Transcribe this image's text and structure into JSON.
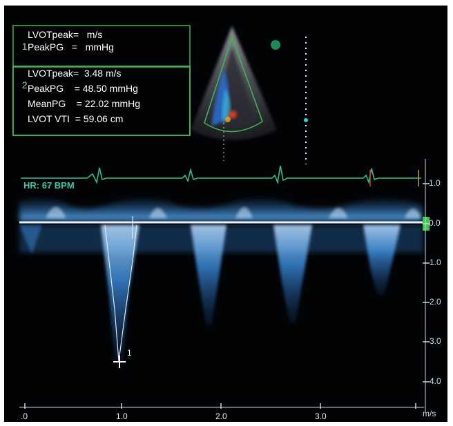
{
  "measurements": {
    "set1": {
      "index": "1",
      "lines": [
        "LVOTpeak=   m/s",
        "PeakPG   =   mmHg"
      ]
    },
    "set2": {
      "index": "2",
      "lines": [
        "LVOTpeak=  3.48 m/s",
        "PeakPG    = 48.50 mmHg",
        "MeanPG    = 22.02 mmHg",
        "LVOT VTI  = 59.06 cm"
      ]
    }
  },
  "ecg": {
    "heart_rate_label": "HR: 67 BPM"
  },
  "velocity_axis": {
    "unit": "m/s",
    "ticks": [
      "1.0",
      "0.0",
      "-1.0",
      "-2.0",
      "-3.0",
      "-4.0"
    ]
  },
  "time_axis": {
    "ticks": [
      ".0",
      "1.0",
      "2.0",
      "3.0"
    ]
  },
  "caliper_marker": "1",
  "colors": {
    "doppler": "#4aa3ea",
    "ecg": "#2fbf8f",
    "frame_box": "#3fae55",
    "baseline": "#e9eef2"
  }
}
